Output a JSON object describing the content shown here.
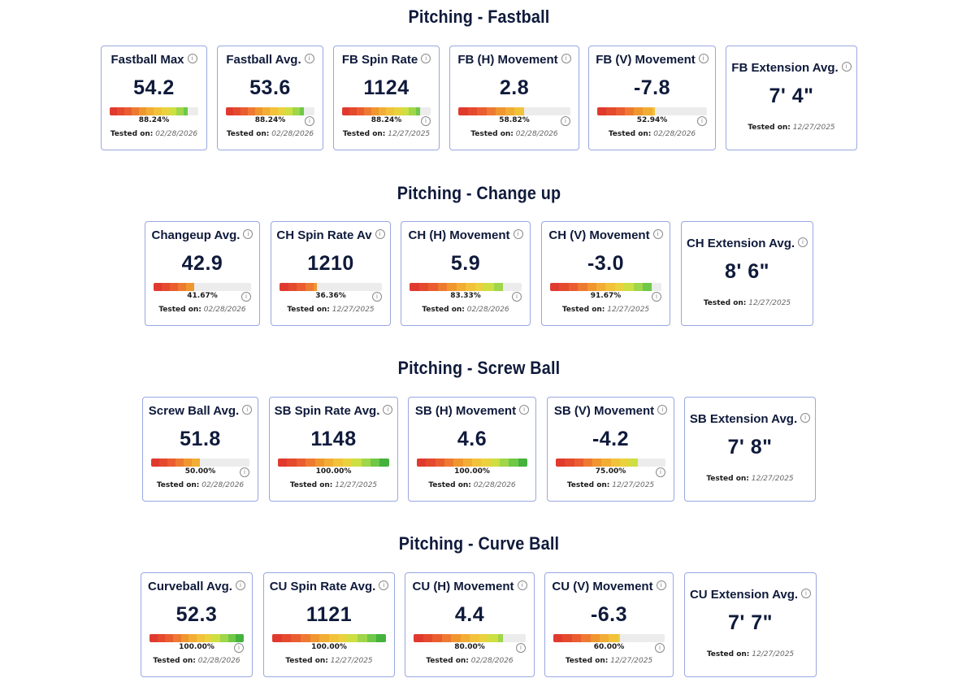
{
  "colors": {
    "segments": [
      "#e03a2e",
      "#e5492e",
      "#ea5d30",
      "#ee7a32",
      "#f0962f",
      "#f2ad35",
      "#f2c23a",
      "#e9d23d",
      "#cddf42",
      "#9fd64a",
      "#6fc847",
      "#45b23e"
    ],
    "empty": "#ececec",
    "border": "#9aa7e0",
    "text": "#0f1a3b"
  },
  "sections": [
    {
      "title": "Pitching - Fastball",
      "cards": [
        {
          "label": "Fastball Max",
          "value": "54.2",
          "percent": 88.24,
          "percent_label": "88.24%",
          "tested_label": "Tested on:",
          "date": "02/28/2026"
        },
        {
          "label": "Fastball Avg.",
          "value": "53.6",
          "percent": 88.24,
          "percent_label": "88.24%",
          "tested_label": "Tested on:",
          "date": "02/28/2026"
        },
        {
          "label": "FB Spin Rate",
          "value": "1124",
          "percent": 88.24,
          "percent_label": "88.24%",
          "tested_label": "Tested on:",
          "date": "12/27/2025"
        },
        {
          "label": "FB (H) Movement",
          "value": "2.8",
          "percent": 58.82,
          "percent_label": "58.82%",
          "tested_label": "Tested on:",
          "date": "02/28/2026"
        },
        {
          "label": "FB (V) Movement",
          "value": "-7.8",
          "percent": 52.94,
          "percent_label": "52.94%",
          "tested_label": "Tested on:",
          "date": "02/28/2026"
        },
        {
          "label": "FB Extension Avg.",
          "value": "7' 4\"",
          "tested_label": "Tested on:",
          "date": "12/27/2025"
        }
      ]
    },
    {
      "title": "Pitching - Change up",
      "cards": [
        {
          "label": "Changeup Avg.",
          "value": "42.9",
          "percent": 41.67,
          "percent_label": "41.67%",
          "tested_label": "Tested on:",
          "date": "02/28/2026"
        },
        {
          "label": "CH Spin Rate Av",
          "value": "1210",
          "percent": 36.36,
          "percent_label": "36.36%",
          "tested_label": "Tested on:",
          "date": "12/27/2025"
        },
        {
          "label": "CH (H) Movement",
          "value": "5.9",
          "percent": 83.33,
          "percent_label": "83.33%",
          "tested_label": "Tested on:",
          "date": "02/28/2026"
        },
        {
          "label": "CH (V) Movement",
          "value": "-3.0",
          "percent": 91.67,
          "percent_label": "91.67%",
          "tested_label": "Tested on:",
          "date": "12/27/2025"
        },
        {
          "label": "CH Extension Avg.",
          "value": "8' 6\"",
          "tested_label": "Tested on:",
          "date": "12/27/2025"
        }
      ]
    },
    {
      "title": "Pitching - Screw Ball",
      "cards": [
        {
          "label": "Screw Ball Avg.",
          "value": "51.8",
          "percent": 50.0,
          "percent_label": "50.00%",
          "tested_label": "Tested on:",
          "date": "02/28/2026"
        },
        {
          "label": "SB Spin Rate Avg.",
          "value": "1148",
          "percent": 100.0,
          "percent_label": "100.00%",
          "tested_label": "Tested on:",
          "date": "12/27/2025"
        },
        {
          "label": "SB (H) Movement",
          "value": "4.6",
          "percent": 100.0,
          "percent_label": "100.00%",
          "tested_label": "Tested on:",
          "date": "02/28/2026"
        },
        {
          "label": "SB (V) Movement",
          "value": "-4.2",
          "percent": 75.0,
          "percent_label": "75.00%",
          "tested_label": "Tested on:",
          "date": "12/27/2025"
        },
        {
          "label": "SB Extension Avg.",
          "value": "7' 8\"",
          "tested_label": "Tested on:",
          "date": "12/27/2025"
        }
      ]
    },
    {
      "title": "Pitching - Curve Ball",
      "cards": [
        {
          "label": "Curveball Avg.",
          "value": "52.3",
          "percent": 100.0,
          "percent_label": "100.00%",
          "tested_label": "Tested on:",
          "date": "02/28/2026"
        },
        {
          "label": "CU Spin Rate Avg.",
          "value": "1121",
          "percent": 100.0,
          "percent_label": "100.00%",
          "tested_label": "Tested on:",
          "date": "12/27/2025"
        },
        {
          "label": "CU (H) Movement",
          "value": "4.4",
          "percent": 80.0,
          "percent_label": "80.00%",
          "tested_label": "Tested on:",
          "date": "02/28/2026"
        },
        {
          "label": "CU (V) Movement",
          "value": "-6.3",
          "percent": 60.0,
          "percent_label": "60.00%",
          "tested_label": "Tested on:",
          "date": "12/27/2025"
        },
        {
          "label": "CU Extension Avg.",
          "value": "7' 7\"",
          "tested_label": "Tested on:",
          "date": "12/27/2025"
        }
      ]
    }
  ]
}
